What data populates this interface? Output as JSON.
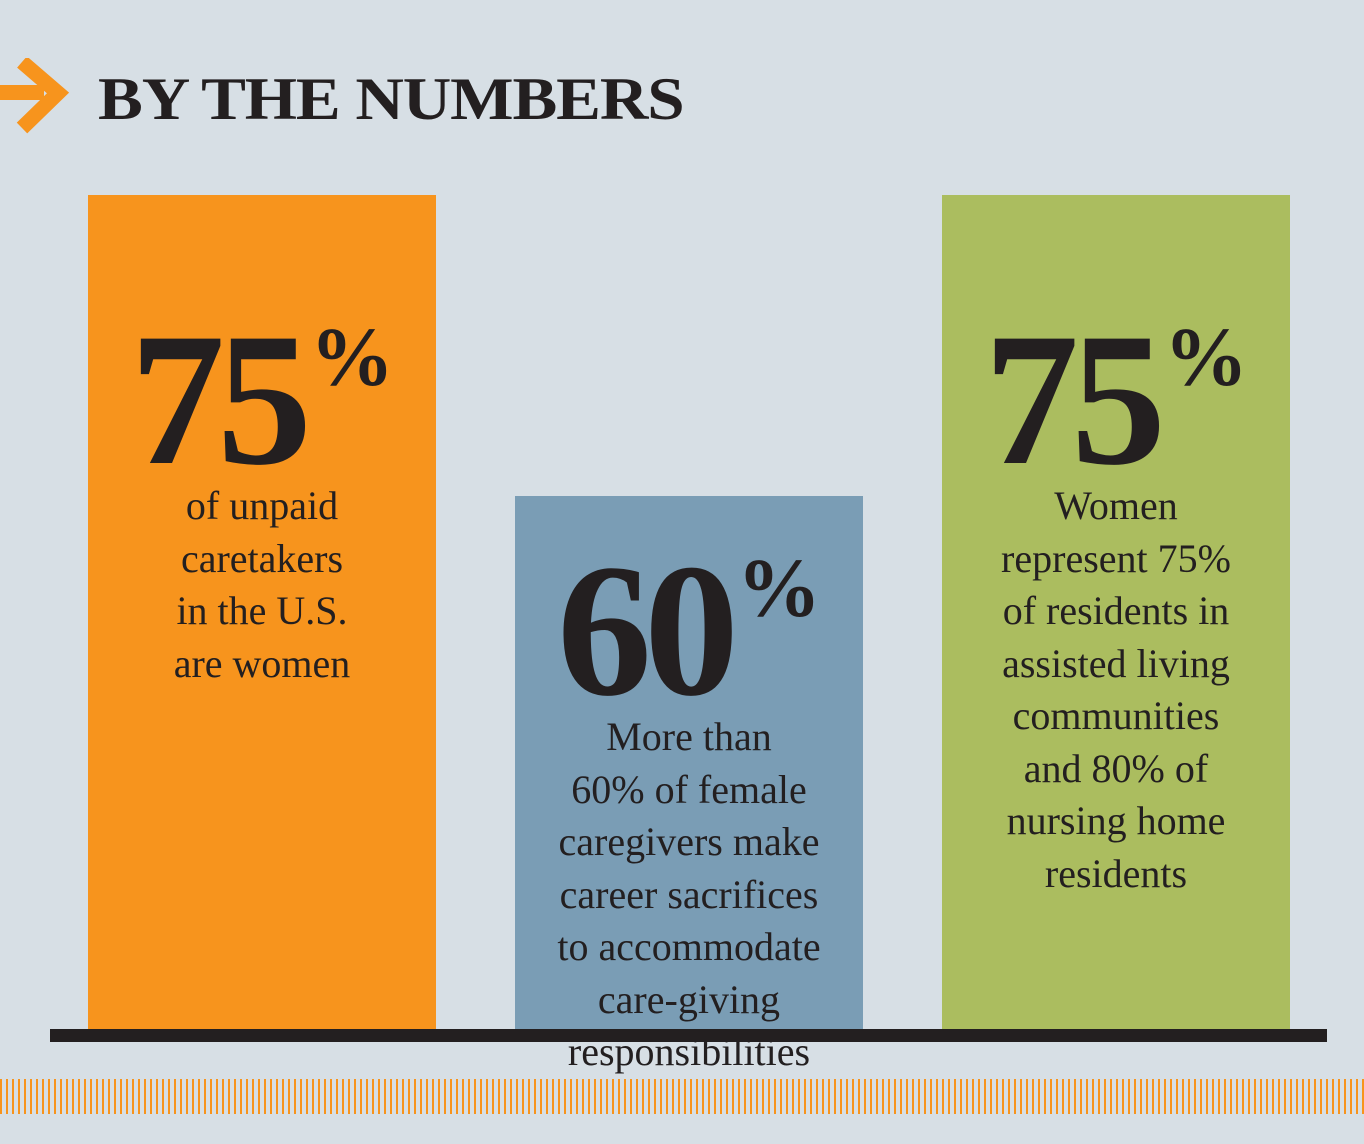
{
  "header": {
    "title": "BY THE NUMBERS",
    "icon": "arrow-right-icon",
    "icon_color": "#f7941d"
  },
  "chart_data": {
    "type": "bar",
    "categories": [
      "of unpaid caretakers in the U.S. are women",
      "More than 60% of female caregivers make career sacrifices to accommodate care-giving responsibilities",
      "Women represent 75% of residents in assisted living communities and 80% of nursing home residents"
    ],
    "series": [
      {
        "values": [
          75,
          60,
          75
        ]
      }
    ],
    "colors": [
      "#f7941d",
      "#7a9db5",
      "#abbd5f"
    ],
    "value_labels": [
      {
        "number": "75",
        "suffix": "%"
      },
      {
        "number": "60",
        "suffix": "%"
      },
      {
        "number": "75",
        "suffix": "%"
      }
    ],
    "descriptions": [
      "of unpaid\ncaretakers\nin the U.S.\nare women",
      "More than\n60% of female\ncaregivers make\ncareer sacrifices\nto accommodate\ncare-giving\nresponsibilities",
      "Women\nrepresent 75%\nof residents in\nassisted living\ncommunities\nand 80% of\nnursing home\nresidents"
    ],
    "title": "BY THE NUMBERS"
  },
  "colors": {
    "background": "#d7dfe5",
    "text": "#231f20",
    "accent": "#f7941d"
  }
}
